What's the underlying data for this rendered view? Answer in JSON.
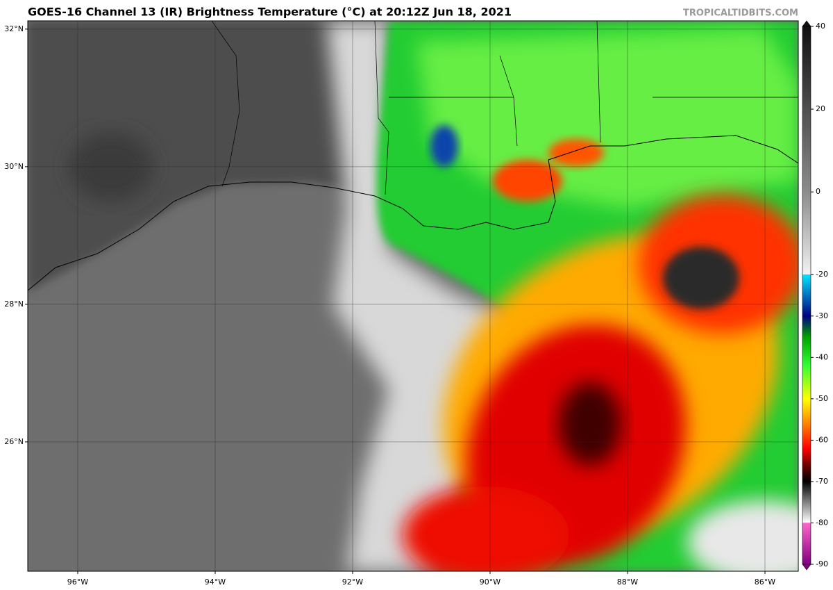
{
  "header": {
    "title": "GOES-16 Channel 13 (IR) Brightness Temperature (°C) at 20:12Z Jun 18, 2021",
    "source": "TROPICALTIDBITS.COM"
  },
  "map": {
    "xlim": [
      -96.727,
      -85.515
    ],
    "ylim": [
      24.12,
      32.12
    ],
    "xticks": [
      {
        "value": -96,
        "label": "96°W"
      },
      {
        "value": -94,
        "label": "94°W"
      },
      {
        "value": -92,
        "label": "92°W"
      },
      {
        "value": -90,
        "label": "90°W"
      },
      {
        "value": -88,
        "label": "88°W"
      },
      {
        "value": -86,
        "label": "86°W"
      }
    ],
    "yticks": [
      {
        "value": 26,
        "label": "26°N"
      },
      {
        "value": 28,
        "label": "28°N"
      },
      {
        "value": 30,
        "label": "30°N"
      },
      {
        "value": 32,
        "label": "32°N"
      }
    ],
    "grid": true
  },
  "colorbar": {
    "lim": [
      40,
      -90
    ],
    "ticks": [
      40,
      20,
      0,
      -20,
      -30,
      -40,
      -50,
      -60,
      -70,
      -80,
      -90
    ],
    "stops": [
      {
        "value": 40,
        "color": "#111111"
      },
      {
        "value": 0,
        "color": "#8c8c8c"
      },
      {
        "value": -19.9,
        "color": "#f2f2f2"
      },
      {
        "value": -20,
        "color": "#00e5ff"
      },
      {
        "value": -30,
        "color": "#000080"
      },
      {
        "value": -35,
        "color": "#00a000"
      },
      {
        "value": -42,
        "color": "#33ff33"
      },
      {
        "value": -50,
        "color": "#ffff00"
      },
      {
        "value": -55,
        "color": "#ff9900"
      },
      {
        "value": -62,
        "color": "#ff0000"
      },
      {
        "value": -66,
        "color": "#700000"
      },
      {
        "value": -70,
        "color": "#000000"
      },
      {
        "value": -79.9,
        "color": "#ffffff"
      },
      {
        "value": -80,
        "color": "#ff66cc"
      },
      {
        "value": -90,
        "color": "#800080"
      }
    ]
  }
}
